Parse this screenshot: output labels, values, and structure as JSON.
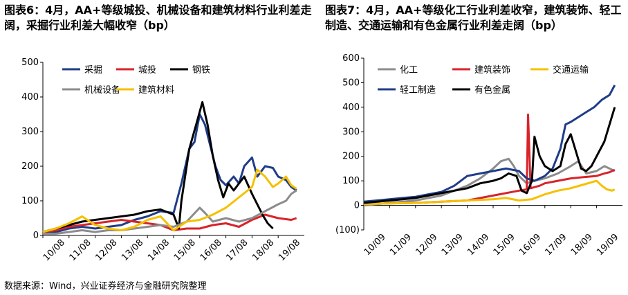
{
  "figures": {
    "left_title": "图表6：4月，AA+等级城投、机械设备和建筑材料行业利差走阔，采掘行业利差大幅收窄（bp）",
    "right_title": "图表7：4月，AA+等级化工行业利差收窄，建筑装饰、轻工制造、交通运输和有色金属行业利差走阔（bp）",
    "source": "数据来源：Wind，兴业证券经济与金融研究院整理"
  },
  "chart_data": [
    {
      "type": "line",
      "title": "",
      "xlabel": "",
      "ylabel": "",
      "ylim": [
        0,
        500
      ],
      "yticks": [
        "0",
        "100",
        "200",
        "300",
        "400",
        "500"
      ],
      "x_ticks": [
        "10/08",
        "11/08",
        "12/08",
        "13/08",
        "14/08",
        "15/08",
        "16/08",
        "17/08",
        "18/08",
        "19/08"
      ],
      "grid": false,
      "legend_position": "top-left",
      "series": [
        {
          "name": "采掘",
          "color": "#1f3c88",
          "points": [
            [
              0,
              5
            ],
            [
              0.5,
              10
            ],
            [
              1,
              20
            ],
            [
              1.5,
              25
            ],
            [
              2,
              20
            ],
            [
              2.5,
              25
            ],
            [
              3,
              30
            ],
            [
              3.5,
              45
            ],
            [
              4,
              55
            ],
            [
              4.5,
              70
            ],
            [
              5,
              65
            ],
            [
              5.3,
              150
            ],
            [
              5.6,
              250
            ],
            [
              5.8,
              270
            ],
            [
              6,
              350
            ],
            [
              6.2,
              320
            ],
            [
              6.4,
              260
            ],
            [
              6.6,
              200
            ],
            [
              6.8,
              160
            ],
            [
              7,
              145
            ],
            [
              7.3,
              170
            ],
            [
              7.5,
              150
            ],
            [
              7.7,
              200
            ],
            [
              8,
              225
            ],
            [
              8.2,
              170
            ],
            [
              8.5,
              200
            ],
            [
              8.8,
              195
            ],
            [
              9,
              170
            ],
            [
              9.3,
              160
            ],
            [
              9.5,
              140
            ],
            [
              9.7,
              130
            ]
          ]
        },
        {
          "name": "城投",
          "color": "#d8232a",
          "points": [
            [
              0,
              10
            ],
            [
              0.5,
              15
            ],
            [
              1,
              25
            ],
            [
              1.5,
              30
            ],
            [
              2,
              35
            ],
            [
              2.5,
              40
            ],
            [
              3,
              45
            ],
            [
              3.5,
              40
            ],
            [
              4,
              35
            ],
            [
              4.5,
              30
            ],
            [
              5,
              15
            ],
            [
              5.5,
              20
            ],
            [
              6,
              20
            ],
            [
              6.5,
              30
            ],
            [
              7,
              35
            ],
            [
              7.5,
              25
            ],
            [
              8,
              45
            ],
            [
              8.5,
              60
            ],
            [
              9,
              50
            ],
            [
              9.5,
              45
            ],
            [
              9.7,
              50
            ]
          ]
        },
        {
          "name": "钢铁",
          "color": "#000000",
          "points": [
            [
              0,
              10
            ],
            [
              0.5,
              20
            ],
            [
              1,
              30
            ],
            [
              1.5,
              40
            ],
            [
              2,
              45
            ],
            [
              2.5,
              50
            ],
            [
              3,
              55
            ],
            [
              3.5,
              60
            ],
            [
              4,
              70
            ],
            [
              4.5,
              75
            ],
            [
              5,
              60
            ],
            [
              5.2,
              20
            ],
            [
              5.3,
              100
            ],
            [
              5.6,
              250
            ],
            [
              5.9,
              330
            ],
            [
              6.1,
              385
            ],
            [
              6.3,
              320
            ],
            [
              6.5,
              230
            ],
            [
              6.7,
              160
            ],
            [
              6.9,
              110
            ],
            [
              7.1,
              150
            ],
            [
              7.3,
              130
            ],
            [
              7.5,
              150
            ],
            [
              7.7,
              170
            ],
            [
              8,
              120
            ],
            [
              8.2,
              90
            ],
            [
              8.4,
              60
            ],
            [
              8.6,
              35
            ],
            [
              8.8,
              20
            ]
          ]
        },
        {
          "name": "机械设备",
          "color": "#8c8c8c",
          "points": [
            [
              0,
              5
            ],
            [
              0.5,
              5
            ],
            [
              1,
              10
            ],
            [
              1.5,
              15
            ],
            [
              2,
              10
            ],
            [
              2.5,
              15
            ],
            [
              3,
              15
            ],
            [
              3.5,
              20
            ],
            [
              4,
              25
            ],
            [
              4.5,
              30
            ],
            [
              5,
              25
            ],
            [
              5.5,
              40
            ],
            [
              6,
              80
            ],
            [
              6.2,
              65
            ],
            [
              6.5,
              40
            ],
            [
              7,
              50
            ],
            [
              7.5,
              40
            ],
            [
              8,
              50
            ],
            [
              8.5,
              70
            ],
            [
              9,
              90
            ],
            [
              9.3,
              100
            ],
            [
              9.5,
              120
            ],
            [
              9.7,
              130
            ]
          ]
        },
        {
          "name": "建筑材料",
          "color": "#f5c000",
          "points": [
            [
              0,
              10
            ],
            [
              0.5,
              20
            ],
            [
              1,
              35
            ],
            [
              1.5,
              55
            ],
            [
              2,
              30
            ],
            [
              2.5,
              20
            ],
            [
              3,
              15
            ],
            [
              3.5,
              25
            ],
            [
              4,
              45
            ],
            [
              4.5,
              55
            ],
            [
              5,
              15
            ],
            [
              5.5,
              40
            ],
            [
              6,
              45
            ],
            [
              6.5,
              60
            ],
            [
              7,
              80
            ],
            [
              7.5,
              110
            ],
            [
              8,
              140
            ],
            [
              8.2,
              190
            ],
            [
              8.5,
              170
            ],
            [
              8.8,
              140
            ],
            [
              9,
              150
            ],
            [
              9.3,
              170
            ],
            [
              9.5,
              145
            ],
            [
              9.7,
              135
            ]
          ]
        }
      ]
    },
    {
      "type": "line",
      "title": "",
      "xlabel": "",
      "ylabel": "",
      "ylim": [
        -100,
        600
      ],
      "yticks": [
        "(100)",
        "0",
        "100",
        "200",
        "300",
        "400",
        "500",
        "600"
      ],
      "x_ticks": [
        "10/09",
        "11/09",
        "12/09",
        "13/09",
        "14/09",
        "15/09",
        "16/09",
        "17/09",
        "18/09",
        "19/09"
      ],
      "grid": false,
      "legend_position": "top-left",
      "series": [
        {
          "name": "化工",
          "color": "#8c8c8c",
          "points": [
            [
              0,
              0
            ],
            [
              0.5,
              5
            ],
            [
              1,
              10
            ],
            [
              1.5,
              15
            ],
            [
              2,
              20
            ],
            [
              2.5,
              30
            ],
            [
              3,
              40
            ],
            [
              3.5,
              60
            ],
            [
              4,
              80
            ],
            [
              4.5,
              110
            ],
            [
              5,
              150
            ],
            [
              5.3,
              180
            ],
            [
              5.6,
              190
            ],
            [
              5.8,
              160
            ],
            [
              6,
              120
            ],
            [
              6.3,
              90
            ],
            [
              6.6,
              100
            ],
            [
              7,
              110
            ],
            [
              7.5,
              130
            ],
            [
              8,
              160
            ],
            [
              8.3,
              180
            ],
            [
              8.6,
              130
            ],
            [
              9,
              140
            ],
            [
              9.3,
              160
            ],
            [
              9.5,
              150
            ],
            [
              9.7,
              140
            ]
          ]
        },
        {
          "name": "建筑装饰",
          "color": "#d8232a",
          "points": [
            [
              0,
              5
            ],
            [
              1,
              8
            ],
            [
              2,
              10
            ],
            [
              3,
              15
            ],
            [
              4,
              20
            ],
            [
              5,
              40
            ],
            [
              6,
              60
            ],
            [
              6.3,
              65
            ],
            [
              6.35,
              370
            ],
            [
              6.45,
              70
            ],
            [
              6.8,
              80
            ],
            [
              7,
              90
            ],
            [
              7.5,
              100
            ],
            [
              8,
              110
            ],
            [
              8.5,
              115
            ],
            [
              9,
              120
            ],
            [
              9.3,
              130
            ],
            [
              9.5,
              135
            ],
            [
              9.7,
              145
            ]
          ]
        },
        {
          "name": "交通运输",
          "color": "#f5c000",
          "points": [
            [
              0,
              5
            ],
            [
              1,
              8
            ],
            [
              2,
              10
            ],
            [
              3,
              15
            ],
            [
              4,
              20
            ],
            [
              5,
              25
            ],
            [
              5.5,
              30
            ],
            [
              6,
              20
            ],
            [
              6.5,
              25
            ],
            [
              7,
              45
            ],
            [
              7.5,
              60
            ],
            [
              8,
              70
            ],
            [
              8.5,
              85
            ],
            [
              9,
              100
            ],
            [
              9.2,
              80
            ],
            [
              9.4,
              65
            ],
            [
              9.6,
              60
            ],
            [
              9.7,
              65
            ]
          ]
        },
        {
          "name": "轻工制造",
          "color": "#1f3c88",
          "points": [
            [
              0,
              15
            ],
            [
              0.5,
              20
            ],
            [
              1,
              25
            ],
            [
              1.5,
              30
            ],
            [
              2,
              35
            ],
            [
              2.5,
              45
            ],
            [
              3,
              55
            ],
            [
              3.5,
              80
            ],
            [
              4,
              120
            ],
            [
              4.5,
              130
            ],
            [
              5,
              140
            ],
            [
              5.5,
              150
            ],
            [
              6,
              140
            ],
            [
              6.3,
              110
            ],
            [
              6.6,
              100
            ],
            [
              7,
              120
            ],
            [
              7.3,
              150
            ],
            [
              7.6,
              230
            ],
            [
              7.8,
              330
            ],
            [
              8,
              340
            ],
            [
              8.3,
              360
            ],
            [
              8.6,
              380
            ],
            [
              8.9,
              400
            ],
            [
              9.2,
              430
            ],
            [
              9.5,
              450
            ],
            [
              9.7,
              490
            ]
          ]
        },
        {
          "name": "有色金属",
          "color": "#000000",
          "points": [
            [
              0,
              10
            ],
            [
              0.5,
              15
            ],
            [
              1,
              20
            ],
            [
              1.5,
              25
            ],
            [
              2,
              30
            ],
            [
              2.5,
              40
            ],
            [
              3,
              50
            ],
            [
              3.5,
              60
            ],
            [
              4,
              70
            ],
            [
              4.5,
              90
            ],
            [
              5,
              100
            ],
            [
              5.3,
              110
            ],
            [
              5.6,
              130
            ],
            [
              5.9,
              120
            ],
            [
              6.1,
              60
            ],
            [
              6.3,
              50
            ],
            [
              6.5,
              100
            ],
            [
              6.6,
              280
            ],
            [
              6.8,
              200
            ],
            [
              7,
              160
            ],
            [
              7.3,
              140
            ],
            [
              7.6,
              160
            ],
            [
              7.8,
              250
            ],
            [
              8,
              290
            ],
            [
              8.2,
              220
            ],
            [
              8.4,
              150
            ],
            [
              8.6,
              140
            ],
            [
              8.8,
              160
            ],
            [
              9,
              200
            ],
            [
              9.3,
              260
            ],
            [
              9.5,
              330
            ],
            [
              9.7,
              400
            ]
          ]
        }
      ]
    }
  ]
}
